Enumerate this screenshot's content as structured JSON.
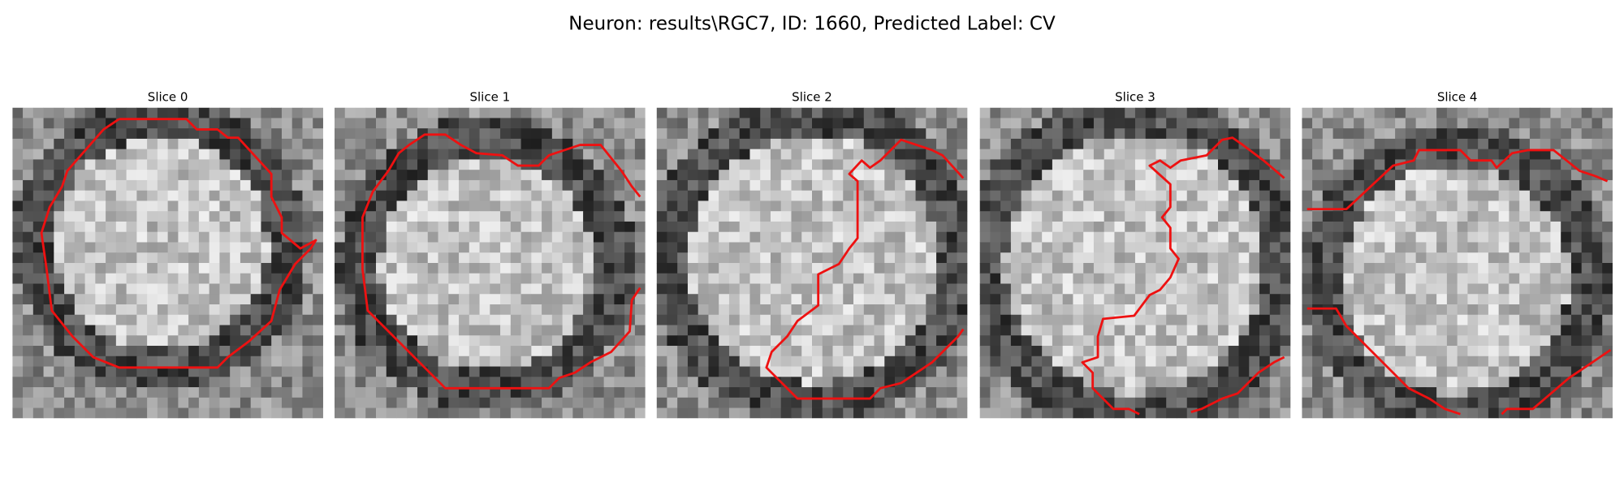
{
  "figure": {
    "title": "Neuron: results\\RGC7, ID: 1660, Predicted Label: CV",
    "panels": [
      {
        "title": "Slice 0"
      },
      {
        "title": "Slice 1"
      },
      {
        "title": "Slice 2"
      },
      {
        "title": "Slice 3"
      },
      {
        "title": "Slice 4"
      }
    ]
  }
}
